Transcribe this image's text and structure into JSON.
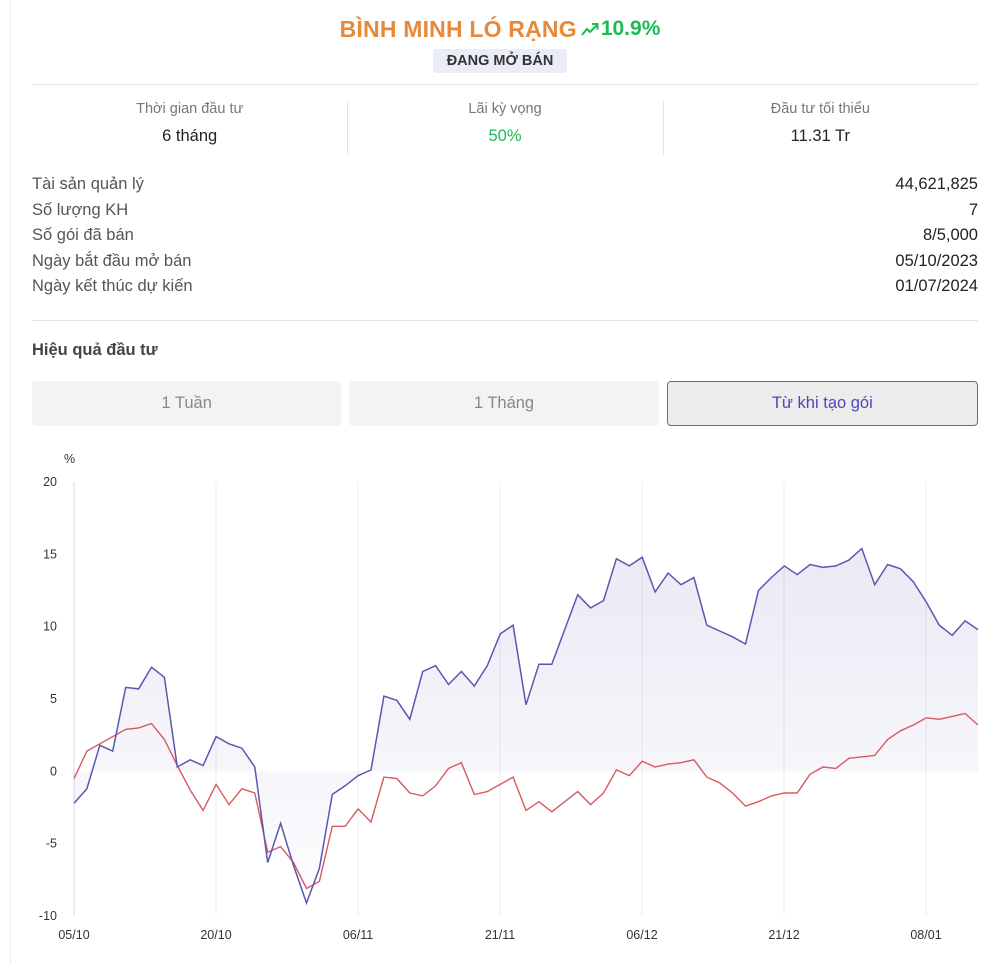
{
  "header": {
    "title": "BÌNH MINH LÓ RẠNG",
    "return_pct": "10.9%",
    "status_badge": "ĐANG MỞ BÁN"
  },
  "stats": [
    {
      "label": "Thời gian đầu tư",
      "value": "6 tháng"
    },
    {
      "label": "Lãi kỳ vọng",
      "value": "50%"
    },
    {
      "label": "Đầu tư tối thiểu",
      "value": "11.31 Tr"
    }
  ],
  "info": [
    {
      "label": "Tài sản quản lý",
      "value": "44,621,825"
    },
    {
      "label": "Số lượng KH",
      "value": "7"
    },
    {
      "label": "Số gói đã bán",
      "value": "8/5,000"
    },
    {
      "label": "Ngày bắt đầu mở bán",
      "value": "05/10/2023"
    },
    {
      "label": "Ngày kết thúc dự kiến",
      "value": "01/07/2024"
    }
  ],
  "performance": {
    "title": "Hiệu quả đầu tư",
    "tabs": [
      "1 Tuần",
      "1 Tháng",
      "Từ khi tạo gói"
    ],
    "active_tab": 2
  },
  "colors": {
    "title": "#e8893a",
    "positive": "#1db954",
    "fund_line": "#5b57b0",
    "benchmark_line": "#d9595f",
    "active_tab_border": "#6560c6"
  },
  "icons": {
    "trend": "trend-up-icon"
  },
  "chart_data": {
    "type": "line",
    "ylabel": "%",
    "ylim": [
      -10,
      20
    ],
    "y_ticks": [
      20,
      15,
      10,
      5,
      0,
      -5,
      -10
    ],
    "x_ticks": [
      "05/10",
      "20/10",
      "06/11",
      "21/11",
      "06/12",
      "21/12",
      "08/01"
    ],
    "grid": "vertical",
    "series": [
      {
        "values": [
          -2.2,
          -1.2,
          1.8,
          1.4,
          5.8,
          5.7,
          7.2,
          6.5,
          0.3,
          0.8,
          0.4,
          2.4,
          1.9,
          1.6,
          0.3,
          -6.3,
          -3.6,
          -6.5,
          -9.1,
          -6.7,
          -1.6,
          -1.0,
          -0.3,
          0.1,
          5.2,
          4.9,
          3.6,
          6.9,
          7.3,
          6.0,
          6.9,
          5.9,
          7.3,
          9.5,
          10.1,
          4.6,
          7.4,
          7.4,
          9.8,
          12.2,
          11.3,
          11.8,
          14.7,
          14.2,
          14.8,
          12.4,
          13.7,
          12.9,
          13.4,
          10.1,
          9.7,
          9.3,
          8.8,
          12.5,
          13.4,
          14.2,
          13.6,
          14.3,
          14.1,
          14.2,
          14.6,
          15.4,
          12.9,
          14.3,
          14.0,
          13.1,
          11.7,
          10.1,
          9.4,
          10.4,
          9.8
        ]
      },
      {
        "values": [
          -0.5,
          1.4,
          1.9,
          2.4,
          2.9,
          3.0,
          3.3,
          2.2,
          0.4,
          -1.3,
          -2.7,
          -0.9,
          -2.3,
          -1.2,
          -1.5,
          -5.6,
          -5.2,
          -6.3,
          -8.1,
          -7.6,
          -3.8,
          -3.8,
          -2.6,
          -3.5,
          -0.4,
          -0.5,
          -1.5,
          -1.7,
          -1.0,
          0.2,
          0.6,
          -1.6,
          -1.4,
          -0.9,
          -0.4,
          -2.7,
          -2.1,
          -2.8,
          -2.1,
          -1.4,
          -2.3,
          -1.5,
          0.1,
          -0.3,
          0.7,
          0.3,
          0.5,
          0.6,
          0.8,
          -0.4,
          -0.8,
          -1.5,
          -2.4,
          -2.1,
          -1.7,
          -1.5,
          -1.5,
          -0.2,
          0.3,
          0.2,
          0.9,
          1.0,
          1.1,
          2.2,
          2.8,
          3.2,
          3.7,
          3.6,
          3.8,
          4.0,
          3.2
        ]
      }
    ]
  }
}
